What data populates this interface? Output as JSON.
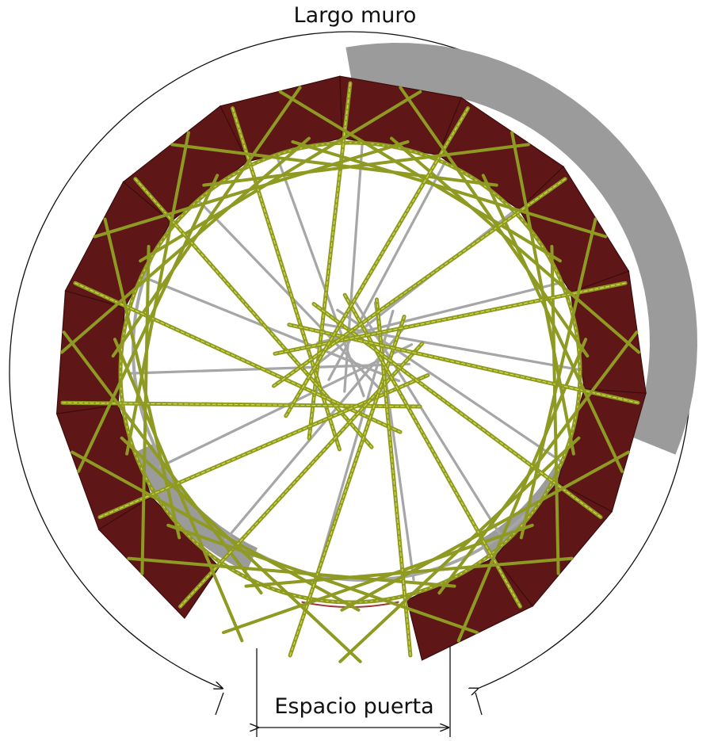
{
  "diagram": {
    "top_label": "Largo muro",
    "bottom_label": "Espacio puerta"
  },
  "colors": {
    "wall_fill": "#5e1616",
    "wall_edge": "#3d0c0c",
    "wall_inner_edge": "#a03535",
    "shadow": "#9b9b9b",
    "back_struts": "#a6a6a6",
    "front_struts": "#8e9a22",
    "front_strut_highlight": "#d6df4a",
    "annotation": "#111111"
  },
  "icons": {
    "dimension_arrows": "arrow-head-icon"
  }
}
